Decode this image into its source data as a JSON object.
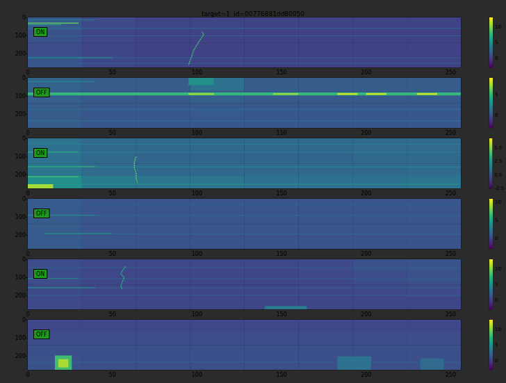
{
  "chart_data": {
    "type": "heatmap",
    "title": "target=1  id=00776881dd80050",
    "xlim": [
      0,
      256
    ],
    "xticks": [
      0,
      50,
      100,
      150,
      200,
      250
    ],
    "ylim": [
      0,
      273
    ],
    "yticks": [
      0,
      100,
      200
    ],
    "panels": [
      {
        "label": "ON",
        "colorbar": {
          "range": [
            -3,
            13
          ],
          "ticks": [
            0,
            5,
            10
          ]
        },
        "cells": {
          "x_edges": [
            0,
            32,
            64,
            96,
            128,
            160,
            192,
            224,
            256
          ],
          "y_edges": [
            0,
            68,
            137,
            205,
            273
          ],
          "values": [
            [
              1.5,
              0.6,
              0.3,
              0.3,
              0.2,
              0.2,
              0.2,
              0.2
            ],
            [
              1.0,
              0.4,
              0.2,
              0.2,
              0.2,
              0.1,
              0.1,
              0.1
            ],
            [
              0.8,
              0.3,
              0.2,
              0.1,
              0.1,
              0.1,
              0.1,
              0.1
            ],
            [
              1.2,
              0.5,
              0.3,
              0.2,
              0.2,
              0.2,
              0.2,
              0.2
            ]
          ]
        },
        "features": [
          [
            0,
            40,
            12,
            15,
            4
          ],
          [
            0,
            30,
            28,
            34,
            9
          ],
          [
            0,
            20,
            38,
            42,
            7
          ],
          [
            0,
            256,
            58,
            61,
            2.5
          ],
          [
            0,
            256,
            99,
            101,
            2
          ],
          [
            0,
            50,
            218,
            223,
            5
          ],
          [
            50,
            256,
            219,
            222,
            2
          ],
          [
            0,
            256,
            248,
            251,
            2
          ]
        ],
        "signal": {
          "value": 8,
          "points": [
            [
              103,
              78
            ],
            [
              104,
              95
            ],
            [
              102,
              120
            ],
            [
              100,
              150
            ],
            [
              98,
              180
            ],
            [
              97,
              210
            ],
            [
              96,
              235
            ],
            [
              95,
              262
            ]
          ]
        }
      },
      {
        "label": "OFF",
        "colorbar": {
          "range": [
            -3,
            9
          ],
          "ticks": [
            0,
            5
          ]
        },
        "cells": {
          "x_edges": [
            0,
            32,
            64,
            96,
            128,
            160,
            192,
            224,
            256
          ],
          "y_edges": [
            0,
            68,
            137,
            205,
            273
          ],
          "values": [
            [
              0.8,
              0.5,
              0.5,
              1.5,
              0.5,
              0.5,
              0.5,
              0.5
            ],
            [
              0.6,
              0.4,
              0.4,
              0.6,
              0.4,
              0.4,
              0.4,
              0.4
            ],
            [
              0.5,
              0.3,
              0.3,
              0.4,
              0.3,
              0.3,
              0.3,
              0.3
            ],
            [
              0.5,
              0.3,
              0.3,
              0.3,
              0.3,
              0.3,
              0.3,
              0.3
            ]
          ]
        },
        "features": [
          [
            95,
            110,
            0,
            40,
            3
          ],
          [
            0,
            40,
            18,
            21,
            3
          ],
          [
            0,
            256,
            80,
            96,
            5
          ],
          [
            95,
            110,
            82,
            94,
            7
          ],
          [
            145,
            160,
            83,
            93,
            7
          ],
          [
            183,
            195,
            83,
            93,
            8
          ],
          [
            200,
            212,
            83,
            93,
            8
          ],
          [
            230,
            242,
            83,
            93,
            8
          ],
          [
            0,
            256,
            170,
            172,
            1.5
          ],
          [
            0,
            256,
            232,
            234,
            1.5
          ]
        ]
      },
      {
        "label": "ON",
        "colorbar": {
          "range": [
            -2.5,
            6.8
          ],
          "ticks": [
            {
              "value": -2.5,
              "label": "-2.5"
            },
            {
              "value": 0,
              "label": "0.0"
            },
            {
              "value": 2.5,
              "label": "2.5"
            },
            {
              "value": 5,
              "label": "5.0"
            }
          ]
        },
        "cells": {
          "x_edges": [
            0,
            32,
            64,
            96,
            128,
            160,
            192,
            224,
            256
          ],
          "y_edges": [
            0,
            68,
            137,
            205,
            273
          ],
          "values": [
            [
              1.0,
              0.6,
              0.6,
              0.6,
              0.6,
              0.6,
              0.7,
              0.7
            ],
            [
              1.0,
              0.6,
              0.5,
              0.5,
              0.5,
              0.5,
              0.6,
              0.6
            ],
            [
              1.2,
              0.7,
              0.6,
              0.6,
              0.6,
              0.6,
              0.6,
              0.7
            ],
            [
              2.2,
              1.3,
              1.1,
              1.1,
              1.0,
              1.0,
              1.0,
              1.1
            ]
          ]
        },
        "features": [
          [
            0,
            256,
            30,
            32,
            1.5
          ],
          [
            0,
            256,
            74,
            76,
            1.5
          ],
          [
            0,
            30,
            73,
            77,
            3.5
          ],
          [
            40,
            256,
            154,
            156,
            1.8
          ],
          [
            0,
            40,
            153,
            157,
            3.5
          ],
          [
            0,
            30,
            208,
            212,
            4
          ],
          [
            0,
            256,
            248,
            251,
            2.2
          ],
          [
            0,
            15,
            250,
            273,
            5.5
          ]
        ],
        "signal": {
          "value": 4.5,
          "points": [
            [
              64,
              100
            ],
            [
              63,
              130
            ],
            [
              63,
              160
            ],
            [
              64,
              190
            ],
            [
              64,
              220
            ],
            [
              65,
              245
            ]
          ]
        }
      },
      {
        "label": "OFF",
        "colorbar": {
          "range": [
            -3,
            11
          ],
          "ticks": [
            0,
            5,
            10
          ]
        },
        "cells": {
          "x_edges": [
            0,
            32,
            64,
            96,
            128,
            160,
            192,
            224,
            256
          ],
          "y_edges": [
            0,
            68,
            137,
            205,
            273
          ],
          "values": [
            [
              1.0,
              0.7,
              0.7,
              0.7,
              0.7,
              0.7,
              0.7,
              0.7
            ],
            [
              1.0,
              0.7,
              0.7,
              0.7,
              0.7,
              0.7,
              0.7,
              0.7
            ],
            [
              1.0,
              0.7,
              0.7,
              0.7,
              0.7,
              0.7,
              0.7,
              0.7
            ],
            [
              1.0,
              0.7,
              0.6,
              0.6,
              0.6,
              0.6,
              0.6,
              0.6
            ]
          ]
        },
        "features": [
          [
            0,
            256,
            28,
            30,
            1.5
          ],
          [
            40,
            256,
            89,
            91,
            1.8
          ],
          [
            0,
            40,
            88,
            92,
            4.5
          ],
          [
            50,
            256,
            189,
            191,
            1.8
          ],
          [
            10,
            50,
            188,
            192,
            4.5
          ]
        ]
      },
      {
        "label": "ON",
        "colorbar": {
          "range": [
            -3,
            13
          ],
          "ticks": [
            0,
            5,
            10
          ]
        },
        "cells": {
          "x_edges": [
            0,
            32,
            64,
            96,
            128,
            160,
            192,
            224,
            256
          ],
          "y_edges": [
            0,
            68,
            137,
            205,
            273
          ],
          "values": [
            [
              0.8,
              0.5,
              0.5,
              0.5,
              0.5,
              0.6,
              1.0,
              1.2
            ],
            [
              0.8,
              0.5,
              0.4,
              0.4,
              0.4,
              0.5,
              0.8,
              1.0
            ],
            [
              0.7,
              0.4,
              0.4,
              0.4,
              0.4,
              0.4,
              0.5,
              0.6
            ],
            [
              0.6,
              0.4,
              0.4,
              0.4,
              0.4,
              0.4,
              0.4,
              0.4
            ]
          ]
        },
        "features": [
          [
            0,
            256,
            44,
            46,
            2
          ],
          [
            30,
            256,
            104,
            106,
            2
          ],
          [
            0,
            30,
            103,
            107,
            5
          ],
          [
            40,
            256,
            154,
            156,
            2
          ],
          [
            0,
            40,
            153,
            157,
            5
          ],
          [
            0,
            256,
            194,
            196,
            1.8
          ],
          [
            140,
            165,
            255,
            273,
            3.5
          ]
        ],
        "signal": {
          "value": 7,
          "points": [
            [
              58,
              40
            ],
            [
              56,
              60
            ],
            [
              55,
              80
            ],
            [
              57,
              100
            ],
            [
              56,
              120
            ],
            [
              55,
              145
            ],
            [
              56,
              168
            ]
          ]
        }
      },
      {
        "label": "OFF",
        "colorbar": {
          "range": [
            -3,
            13
          ],
          "ticks": [
            0,
            5,
            10
          ]
        },
        "cells": {
          "x_edges": [
            0,
            32,
            64,
            96,
            128,
            160,
            192,
            224,
            256
          ],
          "y_edges": [
            0,
            68,
            137,
            205,
            273
          ],
          "values": [
            [
              0.5,
              0.5,
              0.5,
              0.5,
              0.5,
              0.5,
              0.5,
              0.5
            ],
            [
              0.8,
              0.8,
              0.8,
              0.8,
              0.8,
              0.8,
              0.8,
              0.8
            ],
            [
              0.9,
              0.9,
              0.9,
              0.9,
              0.9,
              0.9,
              0.9,
              0.9
            ],
            [
              1.0,
              0.9,
              0.9,
              0.9,
              0.9,
              0.9,
              0.9,
              0.9
            ]
          ]
        },
        "features": [
          [
            0,
            256,
            228,
            231,
            2
          ],
          [
            16,
            26,
            195,
            273,
            8
          ],
          [
            18,
            24,
            215,
            260,
            11
          ],
          [
            183,
            203,
            200,
            273,
            3
          ],
          [
            232,
            246,
            210,
            273,
            2.5
          ]
        ]
      }
    ]
  }
}
